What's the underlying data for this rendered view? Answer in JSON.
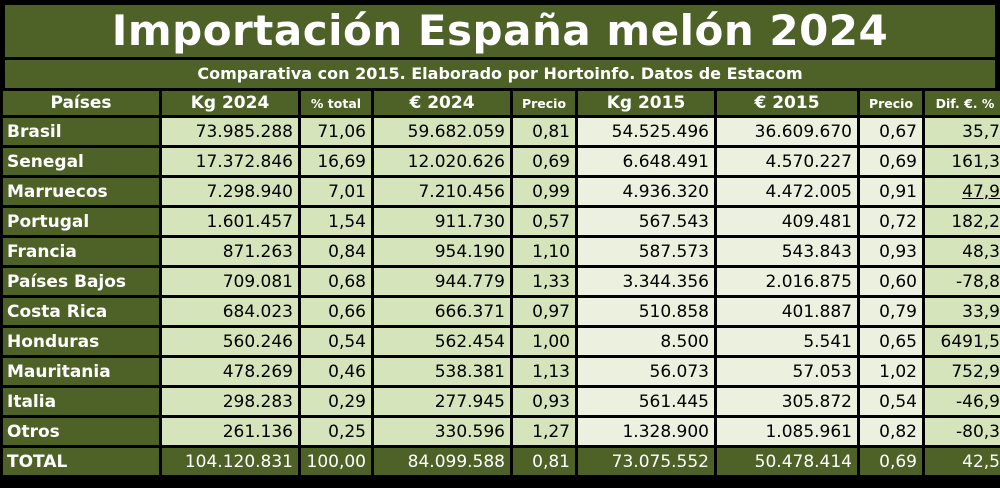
{
  "title": "Importación España melón 2024",
  "subtitle": "Comparativa con 2015. Elaborado por Hortoinfo. Datos de Estacom",
  "headers": [
    "Países",
    "Kg 2024",
    "% total",
    "€ 2024",
    "Precio",
    "Kg 2015",
    "€ 2015",
    "Precio",
    "Dif. €. %"
  ],
  "rows": [
    {
      "pais": "Brasil",
      "kg2024": "73.985.288",
      "pct": "71,06",
      "eur2024": "59.682.059",
      "precio2024": "0,81",
      "kg2015": "54.525.496",
      "eur2015": "36.609.670",
      "precio2015": "0,67",
      "dif": "35,7"
    },
    {
      "pais": "Senegal",
      "kg2024": "17.372.846",
      "pct": "16,69",
      "eur2024": "12.020.626",
      "precio2024": "0,69",
      "kg2015": "6.648.491",
      "eur2015": "4.570.227",
      "precio2015": "0,69",
      "dif": "161,3"
    },
    {
      "pais": "Marruecos",
      "kg2024": "7.298.940",
      "pct": "7,01",
      "eur2024": "7.210.456",
      "precio2024": "0,99",
      "kg2015": "4.936.320",
      "eur2015": "4.472.005",
      "precio2015": "0,91",
      "dif": "47,9"
    },
    {
      "pais": "Portugal",
      "kg2024": "1.601.457",
      "pct": "1,54",
      "eur2024": "911.730",
      "precio2024": "0,57",
      "kg2015": "567.543",
      "eur2015": "409.481",
      "precio2015": "0,72",
      "dif": "182,2"
    },
    {
      "pais": "Francia",
      "kg2024": "871.263",
      "pct": "0,84",
      "eur2024": "954.190",
      "precio2024": "1,10",
      "kg2015": "587.573",
      "eur2015": "543.843",
      "precio2015": "0,93",
      "dif": "48,3"
    },
    {
      "pais": "Países Bajos",
      "kg2024": "709.081",
      "pct": "0,68",
      "eur2024": "944.779",
      "precio2024": "1,33",
      "kg2015": "3.344.356",
      "eur2015": "2.016.875",
      "precio2015": "0,60",
      "dif": "-78,8"
    },
    {
      "pais": "Costa Rica",
      "kg2024": "684.023",
      "pct": "0,66",
      "eur2024": "666.371",
      "precio2024": "0,97",
      "kg2015": "510.858",
      "eur2015": "401.887",
      "precio2015": "0,79",
      "dif": "33,9"
    },
    {
      "pais": "Honduras",
      "kg2024": "560.246",
      "pct": "0,54",
      "eur2024": "562.454",
      "precio2024": "1,00",
      "kg2015": "8.500",
      "eur2015": "5.541",
      "precio2015": "0,65",
      "dif": "6491,5"
    },
    {
      "pais": "Mauritania",
      "kg2024": "478.269",
      "pct": "0,46",
      "eur2024": "538.381",
      "precio2024": "1,13",
      "kg2015": "56.073",
      "eur2015": "57.053",
      "precio2015": "1,02",
      "dif": "752,9"
    },
    {
      "pais": "Italia",
      "kg2024": "298.283",
      "pct": "0,29",
      "eur2024": "277.945",
      "precio2024": "0,93",
      "kg2015": "561.445",
      "eur2015": "305.872",
      "precio2015": "0,54",
      "dif": "-46,9"
    },
    {
      "pais": "Otros",
      "kg2024": "261.136",
      "pct": "0,25",
      "eur2024": "330.596",
      "precio2024": "1,27",
      "kg2015": "1.328.900",
      "eur2015": "1.085.961",
      "precio2015": "0,82",
      "dif": "-80,3"
    }
  ],
  "total": {
    "pais": "TOTAL",
    "kg2024": "104.120.831",
    "pct": "100,00",
    "eur2024": "84.099.588",
    "precio2024": "0,81",
    "kg2015": "73.075.552",
    "eur2015": "50.478.414",
    "precio2015": "0,69",
    "dif": "42,5"
  },
  "colors": {
    "header_green": "#4e6228",
    "col2024": "#d6e4bc",
    "col2015": "#ebf1de",
    "text_white": "#ffffff"
  }
}
